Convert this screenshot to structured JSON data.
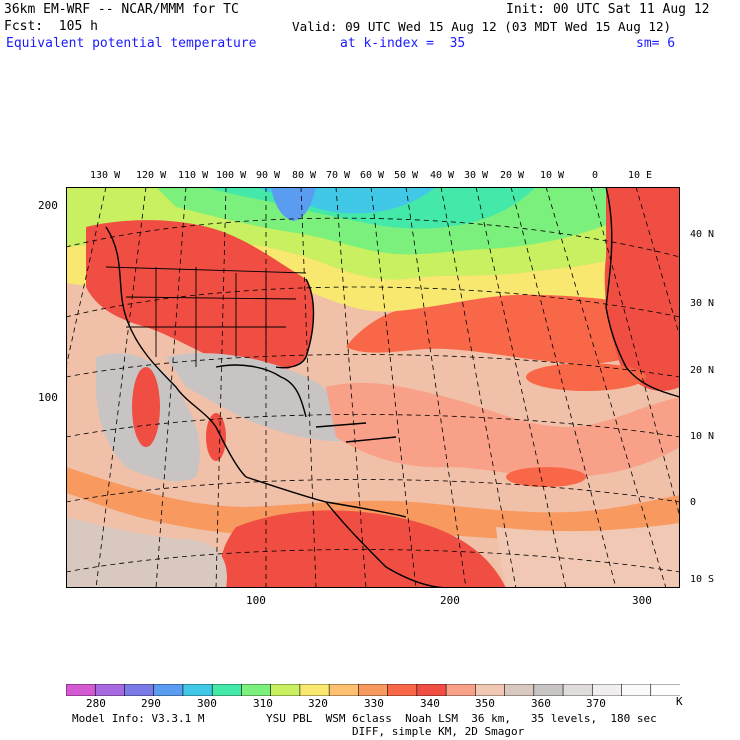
{
  "header": {
    "model": "36km EM-WRF -- NCAR/MMM for TC",
    "fcst": "Fcst:  105 h",
    "init": "Init: 00 UTC Sat 11 Aug 12",
    "valid": "Valid: 09 UTC Wed 15 Aug 12 (03 MDT Wed 15 Aug 12)",
    "field": "Equivalent potential temperature",
    "level": "at k-index =  35",
    "smooth": "sm= 6"
  },
  "map": {
    "lon_labels": [
      "130 W",
      "120 W",
      "110 W",
      "100 W",
      "90 W",
      "80 W",
      "70 W",
      "60 W",
      "50 W",
      "40 W",
      "30 W",
      "20 W",
      "10 W",
      "0",
      "10 E"
    ],
    "lat_labels": [
      "40 N",
      "30 N",
      "20 N",
      "10 N",
      "0",
      "10 S"
    ],
    "grid_x_labels": [
      "100",
      "200",
      "300"
    ],
    "grid_y_labels": [
      "200",
      "100"
    ]
  },
  "colorbar": {
    "colors": [
      "#d45ad4",
      "#a868e0",
      "#7b7be8",
      "#5a9cf0",
      "#41c8e6",
      "#44e8a8",
      "#7cf07c",
      "#c8f060",
      "#f8e870",
      "#fcc070",
      "#f89a60",
      "#f86848",
      "#f04e42",
      "#f8a088",
      "#f0c8b4",
      "#d8c8c0",
      "#c8c4c4",
      "#e0dcdc",
      "#f0eeee",
      "#fafafa",
      "#ffffff"
    ],
    "tick_labels": [
      "280",
      "290",
      "300",
      "310",
      "320",
      "330",
      "340",
      "350",
      "360",
      "370"
    ],
    "units": "K"
  },
  "footer": {
    "line1_left": "Model Info: V3.3.1 M",
    "line1_right": "YSU PBL  WSM 6class  Noah LSM  36 km,   35 levels,  180 sec",
    "line2": "DIFF, simple KM, 2D Smagor"
  }
}
